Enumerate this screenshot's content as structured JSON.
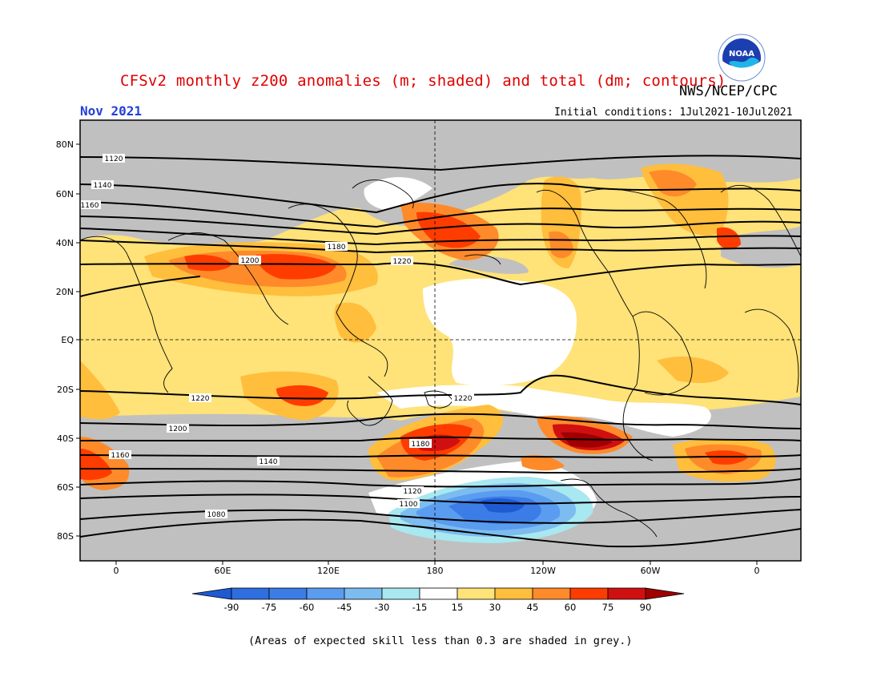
{
  "header": {
    "title": "CFSv2 monthly z200 anomalies (m; shaded) and total (dm; contours)",
    "organization": "NWS/NCEP/CPC",
    "period": "Nov 2021",
    "initial_conditions": "Initial conditions: 1Jul2021-10Jul2021"
  },
  "logo": {
    "icon": "noaa-logo",
    "text": "NOAA"
  },
  "map": {
    "lat_labels": [
      "80N",
      "60N",
      "40N",
      "20N",
      "EQ",
      "20S",
      "40S",
      "60S",
      "80S"
    ],
    "lon_labels": [
      "0",
      "60E",
      "120E",
      "180",
      "120W",
      "60W",
      "0"
    ],
    "contour_labels": [
      {
        "value": "1120"
      },
      {
        "value": "1140"
      },
      {
        "value": "1160"
      },
      {
        "value": "1180"
      },
      {
        "value": "1200"
      },
      {
        "value": "1220"
      },
      {
        "value": "1220"
      },
      {
        "value": "1220"
      },
      {
        "value": "1200"
      },
      {
        "value": "1180"
      },
      {
        "value": "1160"
      },
      {
        "value": "1140"
      },
      {
        "value": "1120"
      },
      {
        "value": "1100"
      },
      {
        "value": "1080"
      }
    ],
    "colors": {
      "skill_grey": "#c0c0c0",
      "pos_15_30": "#ffe278",
      "pos_30_45": "#ffbe3c",
      "pos_45_60": "#ff8a2a",
      "pos_60_75": "#ff3c00",
      "pos_75_90": "#d01010",
      "pos_90": "#a00000",
      "neg_15_30": "#a8e8f0",
      "neg_30_45": "#7cbcf0",
      "neg_45_60": "#5a9cf0",
      "neg_60_75": "#3c7ce6",
      "neg_75_90": "#1e5ad2"
    }
  },
  "colorbar": {
    "labels": [
      "-90",
      "-75",
      "-60",
      "-45",
      "-30",
      "-15",
      "15",
      "30",
      "45",
      "60",
      "75",
      "90"
    ],
    "colors": [
      "#1e5ad2",
      "#2e6ee0",
      "#3c7ce6",
      "#5a9cf0",
      "#7cbcf0",
      "#a8e8f0",
      "#ffffff",
      "#ffe278",
      "#ffbe3c",
      "#ff8a2a",
      "#ff3c00",
      "#d01010",
      "#a00000"
    ]
  },
  "footnote": "(Areas of expected skill less than 0.3 are shaded in grey.)"
}
